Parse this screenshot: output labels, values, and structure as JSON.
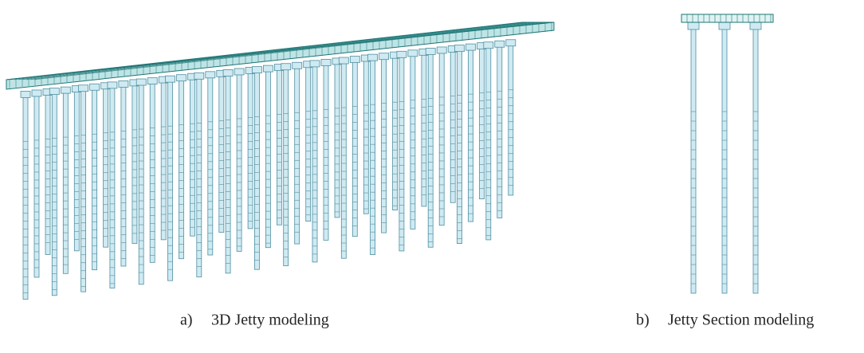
{
  "figures": [
    {
      "label": "a)",
      "caption": "3D Jetty modeling"
    },
    {
      "label": "b)",
      "caption": "Jetty Section modeling"
    }
  ]
}
